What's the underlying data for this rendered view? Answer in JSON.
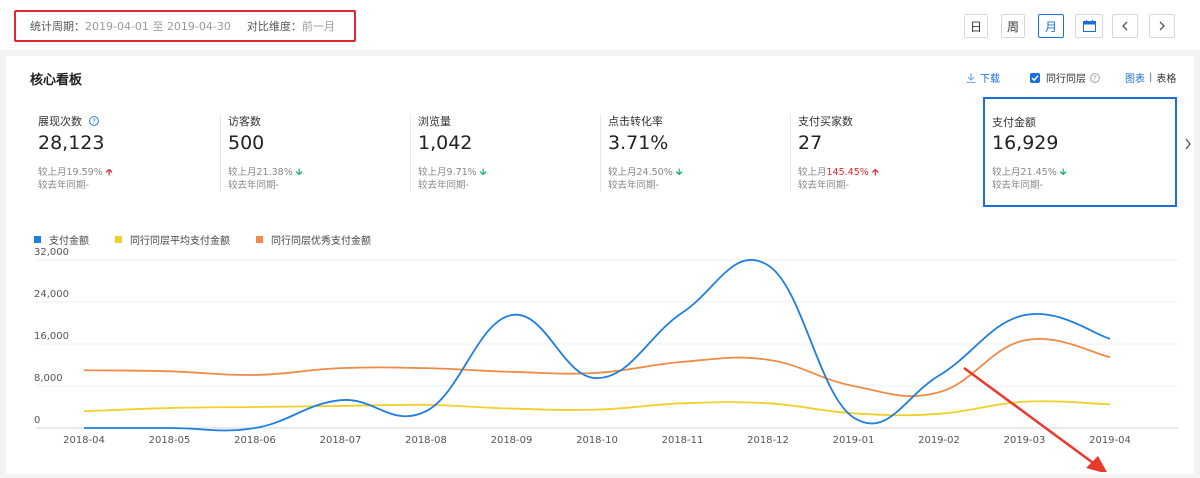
{
  "filter": {
    "period_label": "统计周期：",
    "period_start": "2019-04-01",
    "period_sep": "至",
    "period_end": "2019-04-30",
    "compare_label": "对比维度：",
    "compare_value": "前一月"
  },
  "granularity": {
    "day": "日",
    "week": "周",
    "month": "月",
    "selected": "月"
  },
  "panel": {
    "title": "核心看板",
    "download": "下载",
    "peer_layer": "同行同层",
    "view_chart": "图表",
    "view_sep": "|",
    "view_table": "表格"
  },
  "metrics": [
    {
      "label": "展现次数",
      "has_help": true,
      "value": "28,123",
      "cmp_prefix": "较上月",
      "cmp_value": "19.59%",
      "trend": "up",
      "highlight": false,
      "yoy": "较去年同期-"
    },
    {
      "label": "访客数",
      "has_help": false,
      "value": "500",
      "cmp_prefix": "较上月",
      "cmp_value": "21.38%",
      "trend": "down",
      "highlight": false,
      "yoy": "较去年同期-"
    },
    {
      "label": "浏览量",
      "has_help": false,
      "value": "1,042",
      "cmp_prefix": "较上月",
      "cmp_value": "9.71%",
      "trend": "down",
      "highlight": false,
      "yoy": "较去年同期-"
    },
    {
      "label": "点击转化率",
      "has_help": false,
      "value": "3.71%",
      "cmp_prefix": "较上月",
      "cmp_value": "24.50%",
      "trend": "down",
      "highlight": false,
      "yoy": "较去年同期-"
    },
    {
      "label": "支付买家数",
      "has_help": false,
      "value": "27",
      "cmp_prefix": "较上月",
      "cmp_value": "145.45%",
      "trend": "up",
      "highlight": true,
      "yoy": "较去年同期-"
    },
    {
      "label": "支付金额",
      "has_help": false,
      "value": "16,929",
      "cmp_prefix": "较上月",
      "cmp_value": "21.45%",
      "trend": "down",
      "highlight": false,
      "yoy": "较去年同期-",
      "selected": true
    }
  ],
  "colors": {
    "accent": "#1a6fdf",
    "up": "#e0282e",
    "down": "#19a97b",
    "annotation": "#e8392b"
  },
  "chart_data": {
    "type": "line",
    "categories": [
      "2018-04",
      "2018-05",
      "2018-06",
      "2018-07",
      "2018-08",
      "2018-09",
      "2018-10",
      "2018-11",
      "2018-12",
      "2019-01",
      "2019-02",
      "2019-03",
      "2019-04"
    ],
    "yticks": [
      0,
      8000,
      16000,
      24000,
      32000
    ],
    "ytick_labels": [
      "0",
      "8,000",
      "16,000",
      "24,000",
      "32,000"
    ],
    "ylim": [
      0,
      32000
    ],
    "grid": true,
    "legend_position": "top-left",
    "series": [
      {
        "name": "支付金额",
        "color": "#1e7fe0",
        "values": [
          0,
          0,
          0,
          5300,
          3200,
          21500,
          9500,
          22000,
          31000,
          2000,
          10000,
          21500,
          17000
        ]
      },
      {
        "name": "同行同层平均支付金额",
        "color": "#f2cf2a",
        "values": [
          3200,
          3800,
          4000,
          4200,
          4400,
          3700,
          3500,
          4700,
          4700,
          2800,
          2700,
          5000,
          4500
        ]
      },
      {
        "name": "同行同层优秀支付金额",
        "color": "#f08b45",
        "values": [
          11000,
          10800,
          10100,
          11400,
          11400,
          10700,
          10500,
          12600,
          13000,
          8000,
          6800,
          16700,
          13500
        ]
      }
    ]
  }
}
